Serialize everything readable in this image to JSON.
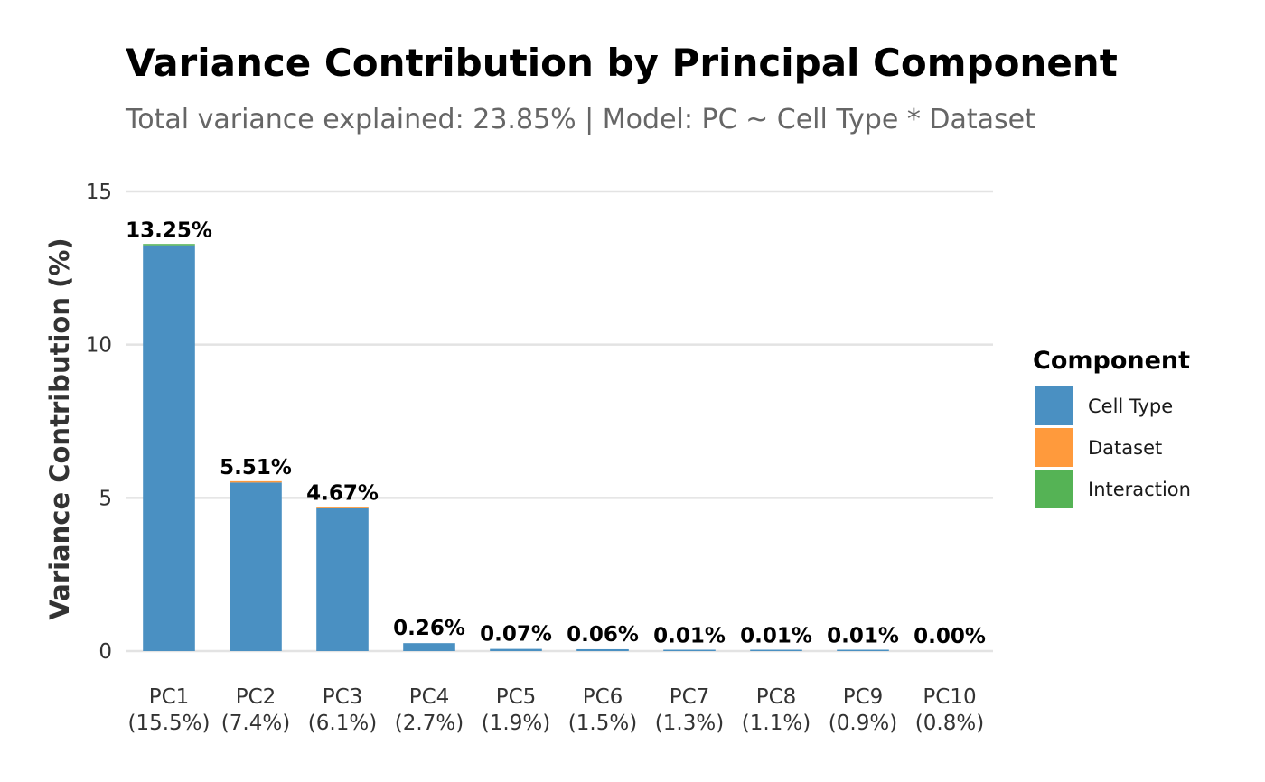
{
  "chart_data": {
    "type": "bar",
    "title": "Variance Contribution by Principal Component",
    "subtitle": "Total variance explained: 23.85% | Model: PC ~ Cell Type * Dataset",
    "ylabel": "Variance Contribution (%)",
    "xlabel": "",
    "ylim": [
      0,
      15
    ],
    "yticks": [
      0,
      5,
      10,
      15
    ],
    "grid": true,
    "legend_position": "right",
    "legend_title": "Component",
    "categories": [
      "PC1",
      "PC2",
      "PC3",
      "PC4",
      "PC5",
      "PC6",
      "PC7",
      "PC8",
      "PC9",
      "PC10"
    ],
    "category_sublabels": [
      "(15.5%)",
      "(7.4%)",
      "(6.1%)",
      "(2.7%)",
      "(1.9%)",
      "(1.5%)",
      "(1.3%)",
      "(1.1%)",
      "(0.9%)",
      "(0.8%)"
    ],
    "data_labels": [
      "13.25%",
      "5.51%",
      "4.67%",
      "0.26%",
      "0.07%",
      "0.06%",
      "0.01%",
      "0.01%",
      "0.01%",
      "0.00%"
    ],
    "series": [
      {
        "name": "Cell Type",
        "color": "#4a90c2",
        "values": [
          13.24,
          5.5,
          4.66,
          0.26,
          0.07,
          0.06,
          0.01,
          0.01,
          0.01,
          0.0
        ]
      },
      {
        "name": "Dataset",
        "color": "#ff9a3c",
        "values": [
          0.0,
          0.01,
          0.01,
          0.0,
          0.0,
          0.0,
          0.0,
          0.0,
          0.0,
          0.0
        ]
      },
      {
        "name": "Interaction",
        "color": "#55b355",
        "values": [
          0.01,
          0.0,
          0.0,
          0.0,
          0.0,
          0.0,
          0.0,
          0.0,
          0.0,
          0.0
        ]
      }
    ]
  }
}
